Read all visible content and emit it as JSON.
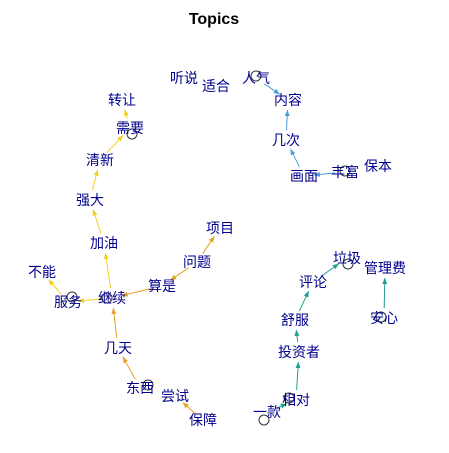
{
  "title": "Topics",
  "colors": {
    "label": "#00008B",
    "node_outline": "#333333",
    "edge_blue": "#4A9FD8",
    "edge_yellow": "#F0D020",
    "edge_orange": "#E8A020",
    "edge_teal": "#1E9E8E"
  },
  "nodes": [
    {
      "id": "n1",
      "label": "听说"
    },
    {
      "id": "n2",
      "label": "适合"
    },
    {
      "id": "n3",
      "label": "人气"
    },
    {
      "id": "n4",
      "label": "内容"
    },
    {
      "id": "n5",
      "label": "几次"
    },
    {
      "id": "n6",
      "label": "画面"
    },
    {
      "id": "n7",
      "label": "丰富"
    },
    {
      "id": "n8",
      "label": "保本"
    },
    {
      "id": "n9",
      "label": "转让"
    },
    {
      "id": "n10",
      "label": "需要"
    },
    {
      "id": "n11",
      "label": "清新"
    },
    {
      "id": "n12",
      "label": "强大"
    },
    {
      "id": "n13",
      "label": "加油"
    },
    {
      "id": "n14",
      "label": "不能"
    },
    {
      "id": "n15",
      "label": "服务"
    },
    {
      "id": "n16",
      "label": "继续"
    },
    {
      "id": "n17",
      "label": "算是"
    },
    {
      "id": "n18",
      "label": "问题"
    },
    {
      "id": "n19",
      "label": "项目"
    },
    {
      "id": "n20",
      "label": "几天"
    },
    {
      "id": "n21",
      "label": "东西"
    },
    {
      "id": "n22",
      "label": "尝试"
    },
    {
      "id": "n23",
      "label": "保障"
    },
    {
      "id": "n24",
      "label": "垃圾"
    },
    {
      "id": "n25",
      "label": "管理费"
    },
    {
      "id": "n26",
      "label": "评论"
    },
    {
      "id": "n27",
      "label": "舒服"
    },
    {
      "id": "n28",
      "label": "安心"
    },
    {
      "id": "n29",
      "label": "投资者"
    },
    {
      "id": "n30",
      "label": "相对"
    },
    {
      "id": "n31",
      "label": "一款"
    }
  ],
  "edges": [
    {
      "from": "n3",
      "to": "n4",
      "color": "edge_blue"
    },
    {
      "from": "n5",
      "to": "n4",
      "color": "edge_blue"
    },
    {
      "from": "n6",
      "to": "n5",
      "color": "edge_blue"
    },
    {
      "from": "n7",
      "to": "n6",
      "color": "edge_blue"
    },
    {
      "from": "n10",
      "to": "n9",
      "color": "edge_yellow"
    },
    {
      "from": "n11",
      "to": "n10",
      "color": "edge_yellow"
    },
    {
      "from": "n12",
      "to": "n11",
      "color": "edge_yellow"
    },
    {
      "from": "n13",
      "to": "n12",
      "color": "edge_yellow"
    },
    {
      "from": "n16",
      "to": "n13",
      "color": "edge_yellow"
    },
    {
      "from": "n15",
      "to": "n14",
      "color": "edge_yellow"
    },
    {
      "from": "n16",
      "to": "n15",
      "color": "edge_yellow"
    },
    {
      "from": "n17",
      "to": "n16",
      "color": "edge_orange"
    },
    {
      "from": "n18",
      "to": "n17",
      "color": "edge_orange"
    },
    {
      "from": "n18",
      "to": "n19",
      "color": "edge_orange"
    },
    {
      "from": "n20",
      "to": "n16",
      "color": "edge_orange"
    },
    {
      "from": "n21",
      "to": "n20",
      "color": "edge_orange"
    },
    {
      "from": "n23",
      "to": "n22",
      "color": "edge_orange"
    },
    {
      "from": "n26",
      "to": "n24",
      "color": "edge_teal"
    },
    {
      "from": "n27",
      "to": "n26",
      "color": "edge_teal"
    },
    {
      "from": "n29",
      "to": "n27",
      "color": "edge_teal"
    },
    {
      "from": "n30",
      "to": "n29",
      "color": "edge_teal"
    },
    {
      "from": "n31",
      "to": "n30",
      "color": "edge_teal"
    },
    {
      "from": "n28",
      "to": "n25",
      "color": "edge_teal"
    }
  ]
}
